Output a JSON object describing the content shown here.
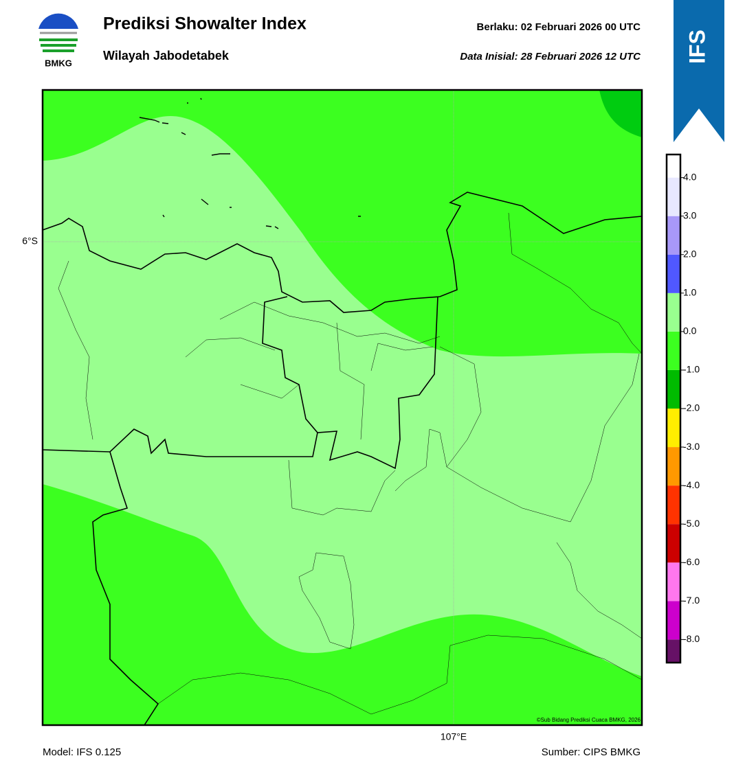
{
  "header": {
    "logo_text": "BMKG",
    "title": "Prediksi Showalter Index",
    "subtitle": "Wilayah Jabodetabek",
    "valid": "Berlaku:  02 Februari 2026 00 UTC",
    "init": "Data Inisial:  28 Februari 2026 12 UTC",
    "badge": "IFS"
  },
  "map": {
    "lat_label": "6°S",
    "lon_label": "107°E",
    "copyright": "©Sub Bidang Prediksi Cuaca BMKG, 2026"
  },
  "colorbar": {
    "range": [
      -8.6,
      4.6
    ],
    "ticks": [
      {
        "value": -8,
        "label": "-8.0"
      },
      {
        "value": -7,
        "label": "-7.0"
      },
      {
        "value": -6,
        "label": "-6.0"
      },
      {
        "value": -5,
        "label": "-5.0"
      },
      {
        "value": -4,
        "label": "-4.0"
      },
      {
        "value": -3,
        "label": "-3.0"
      },
      {
        "value": -2,
        "label": "-2.0"
      },
      {
        "value": -1,
        "label": "-1.0"
      },
      {
        "value": 0,
        "label": "0.0"
      },
      {
        "value": 1,
        "label": "1.0"
      },
      {
        "value": 2,
        "label": "2.0"
      },
      {
        "value": 3,
        "label": "3.0"
      },
      {
        "value": 4,
        "label": "4.0"
      }
    ],
    "colors": [
      "#661166",
      "#cc00cc",
      "#ff77ee",
      "#cc0000",
      "#ff3300",
      "#ff9900",
      "#ffee00",
      "#00bb00",
      "#3cff20",
      "#99ff8f",
      "#5058ff",
      "#a898f8",
      "#e8e8ff",
      "#ffffff"
    ]
  },
  "footer": {
    "model": "Model: IFS 0.125",
    "source": "Sumber: CIPS BMKG"
  }
}
